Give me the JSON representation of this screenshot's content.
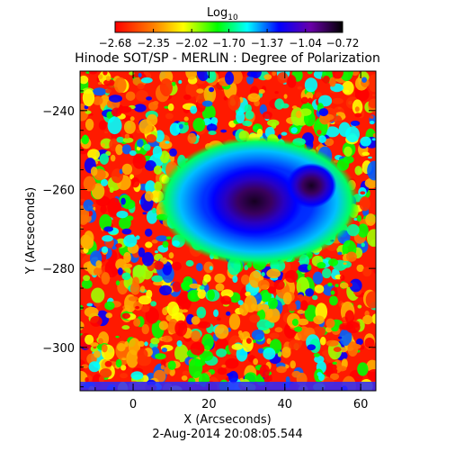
{
  "chart_data": {
    "type": "heatmap",
    "title": "Hinode SOT/SP - MERLIN : Degree of Polarization",
    "xlabel": "X (Arcseconds)",
    "ylabel": "Y (Arcseconds)",
    "timestamp": "2-Aug-2014 20:08:05.544",
    "colorbar": {
      "label": "Log",
      "label_sub": "10",
      "ticks": [
        -2.68,
        -2.35,
        -2.02,
        -1.7,
        -1.37,
        -1.04,
        -0.72
      ],
      "tick_labels": [
        "−2.68",
        "−2.35",
        "−2.02",
        "−1.70",
        "−1.37",
        "−1.04",
        "−0.72"
      ],
      "colormap": "rainbow (red → yellow → green → cyan → blue → purple → black)",
      "colors": [
        "#ff0000",
        "#ffff00",
        "#00ff00",
        "#00ffff",
        "#0000ff",
        "#6a00a8",
        "#000000"
      ]
    },
    "xlim": [
      -14,
      64
    ],
    "ylim": [
      -311,
      -230
    ],
    "xticks": [
      0,
      20,
      40,
      60
    ],
    "xtick_labels": [
      "0",
      "20",
      "40",
      "60"
    ],
    "yticks": [
      -300,
      -280,
      -260,
      -240
    ],
    "ytick_labels": [
      "−300",
      "−280",
      "−260",
      "−240"
    ],
    "features": [
      {
        "name": "sunspot umbra",
        "x": 32,
        "y": -263,
        "value": -0.72
      },
      {
        "name": "sunspot umbra",
        "x": 47,
        "y": -259,
        "value": -0.75
      },
      {
        "name": "penumbra",
        "x": 33,
        "y": -263,
        "value": -1.1
      }
    ],
    "background_value": -2.5
  }
}
